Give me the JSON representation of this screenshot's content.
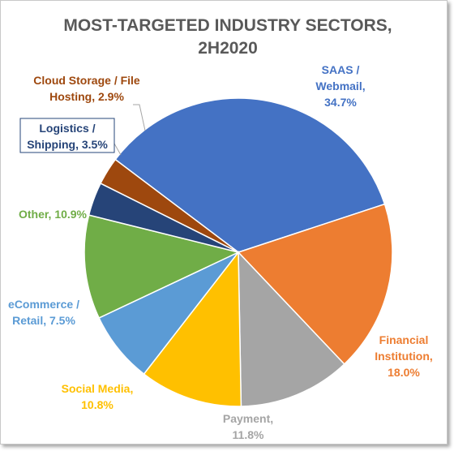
{
  "chart_data": {
    "type": "pie",
    "title_lines": [
      "MOST-TARGETED INDUSTRY SECTORS,",
      "2H2020"
    ],
    "slices": [
      {
        "id": "saas",
        "label_lines": [
          "SAAS /",
          "Webmail,",
          "34.7%"
        ],
        "value": 34.7,
        "color": "#4472c4"
      },
      {
        "id": "financial",
        "label_lines": [
          "Financial",
          "Institution,",
          "18.0%"
        ],
        "value": 18.0,
        "color": "#ed7d31"
      },
      {
        "id": "payment",
        "label_lines": [
          "Payment,",
          "11.8%"
        ],
        "value": 11.8,
        "color": "#a5a5a5"
      },
      {
        "id": "social-media",
        "label_lines": [
          "Social Media,",
          "10.8%"
        ],
        "value": 10.8,
        "color": "#ffc000"
      },
      {
        "id": "ecommerce",
        "label_lines": [
          "eCommerce /",
          "Retail, 7.5%"
        ],
        "value": 7.5,
        "color": "#5b9bd5"
      },
      {
        "id": "other",
        "label_lines": [
          "Other, 10.9%"
        ],
        "value": 10.9,
        "color": "#70ad47"
      },
      {
        "id": "logistics",
        "label_lines": [
          "Logistics /",
          "Shipping, 3.5%"
        ],
        "value": 3.5,
        "color": "#264478"
      },
      {
        "id": "cloud-storage",
        "label_lines": [
          "Cloud Storage / File",
          "Hosting, 2.9%"
        ],
        "value": 2.9,
        "color": "#9e480e"
      }
    ]
  }
}
